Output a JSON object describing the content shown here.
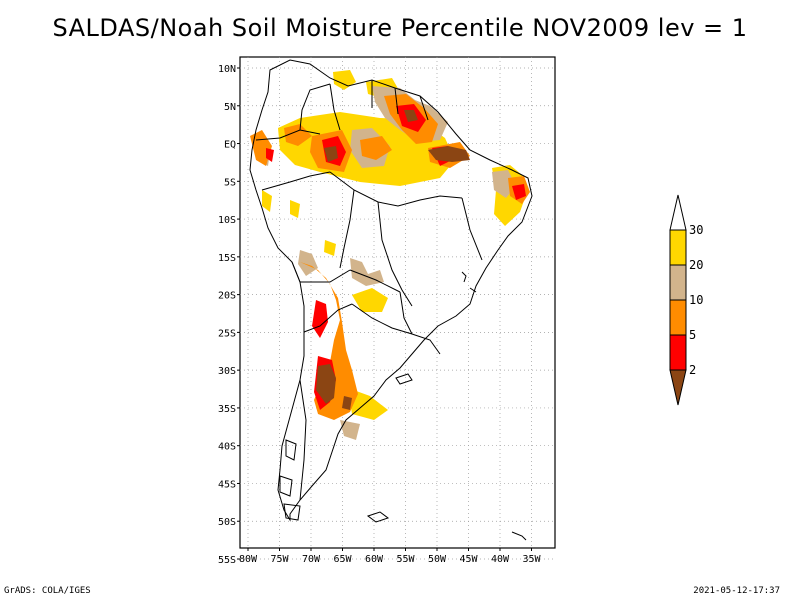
{
  "title": "SALDAS/Noah Soil Moisture Percentile NOV2009 lev = 1",
  "footer_left": "GrADS: COLA/IGES",
  "footer_right": "2021-05-12-17:37",
  "map": {
    "region": "South America",
    "lon_range": [
      -80,
      -30
    ],
    "lat_range": [
      -55,
      10
    ],
    "lat_labels": [
      "10N",
      "5N",
      "EQ",
      "5S",
      "10S",
      "15S",
      "20S",
      "25S",
      "30S",
      "35S",
      "40S",
      "45S",
      "50S",
      "55S"
    ],
    "lon_labels": [
      "80W",
      "75W",
      "70W",
      "65W",
      "60W",
      "55W",
      "50W",
      "45W",
      "40W",
      "35W"
    ],
    "grid": "dotted"
  },
  "legend": {
    "labels": [
      "2",
      "5",
      "10",
      "20",
      "30"
    ],
    "colors": [
      "#8b4513",
      "#ff0000",
      "#ff8c00",
      "#d2b48c",
      "#ffd700",
      "#ffffff"
    ]
  }
}
